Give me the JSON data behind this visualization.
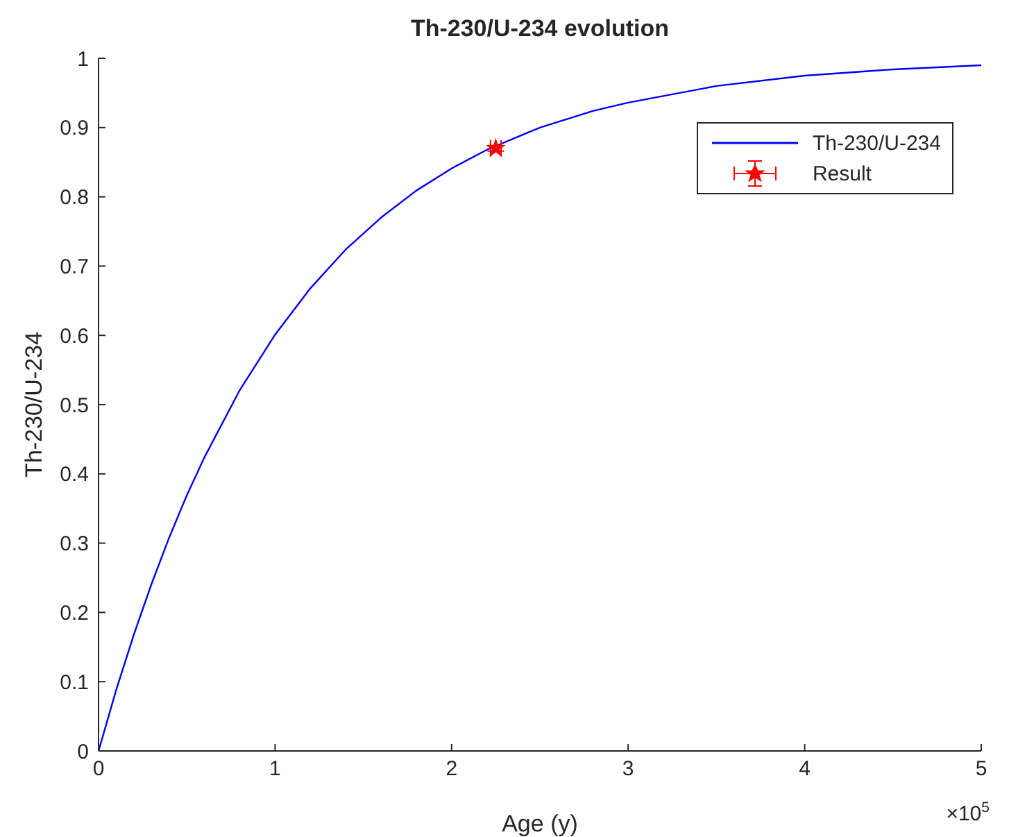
{
  "chart_data": {
    "type": "line",
    "title": "Th-230/U-234 evolution",
    "xlabel": "Age (y)",
    "ylabel": "Th-230/U-234",
    "annotations": [
      "×10$^{5}$"
    ],
    "xlim": [
      0,
      5
    ],
    "xticks": [
      0,
      1,
      2,
      3,
      4,
      5
    ],
    "ylim": [
      0,
      1
    ],
    "yticks": [
      0,
      0.1,
      0.2,
      0.3,
      0.4,
      0.5,
      0.6,
      0.7,
      0.8,
      0.9,
      1
    ],
    "legend": "top right",
    "series": [
      {
        "name": "Th-230/U-234",
        "color": "#0000ff",
        "marker": "none",
        "line_style": "solid",
        "x": [
          0,
          0.1,
          0.2,
          0.3,
          0.4,
          0.5,
          0.6,
          0.8,
          1,
          1.2,
          1.4,
          1.6,
          1.8,
          2,
          2.2,
          2.5,
          2.8,
          3,
          3.5,
          4,
          4.5,
          5
        ],
        "values": [
          0,
          0.088,
          0.168,
          0.241,
          0.308,
          0.369,
          0.424,
          0.521,
          0.601,
          0.668,
          0.724,
          0.77,
          0.809,
          0.841,
          0.868,
          0.9,
          0.924,
          0.936,
          0.96,
          0.975,
          0.984,
          0.99
        ]
      },
      {
        "name": "Result",
        "type": "scatter",
        "color": "#ff0000",
        "marker": "star",
        "x": [
          2.25
        ],
        "values": [
          0.87
        ],
        "errors": [
          0.004
        ],
        "xerrors": [
          0.03
        ]
      }
    ]
  }
}
